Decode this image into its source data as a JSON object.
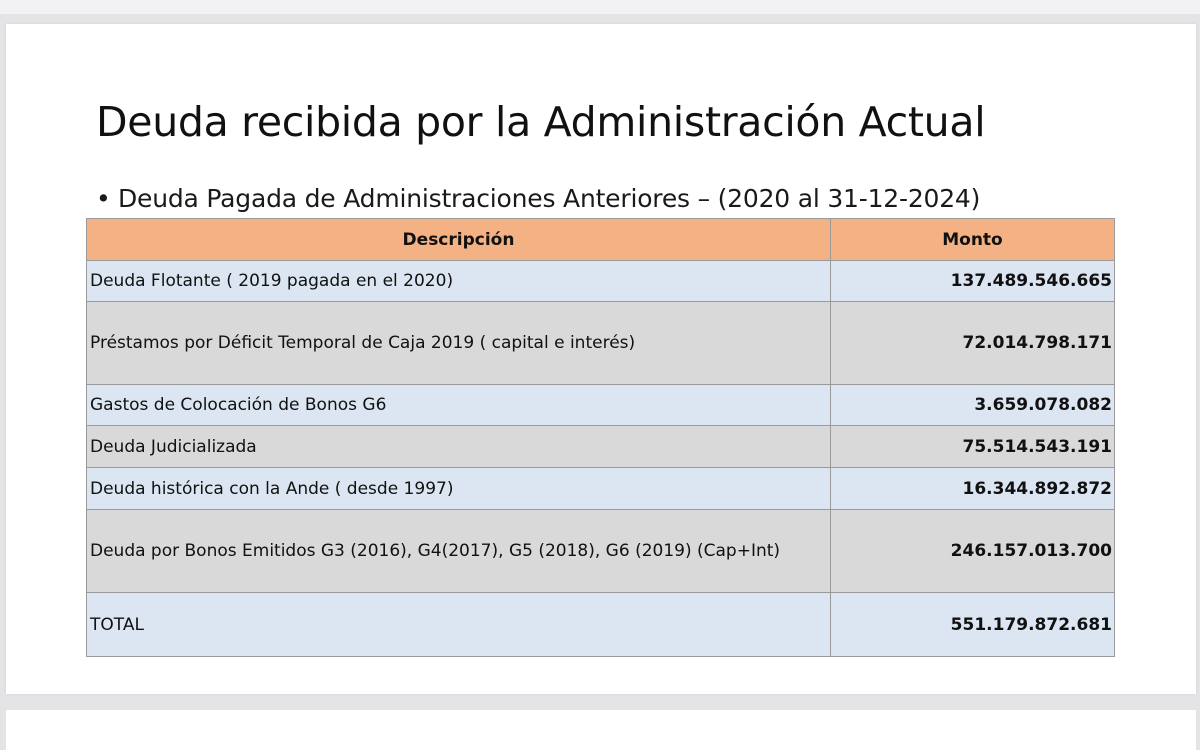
{
  "slide": {
    "title": "Deuda recibida por la Administración Actual",
    "bullet": "•",
    "subtitle": "Deuda Pagada de Administraciones Anteriores – (2020 al 31-12-2024)"
  },
  "table": {
    "headers": {
      "description": "Descripción",
      "amount": "Monto"
    },
    "rows": [
      {
        "description": "Deuda Flotante ( 2019 pagada en el 2020)",
        "amount": "137.489.546.665"
      },
      {
        "description": "Préstamos por Déficit Temporal de Caja 2019 ( capital e interés)",
        "amount": "72.014.798.171"
      },
      {
        "description": "Gastos de Colocación de Bonos G6",
        "amount": "3.659.078.082"
      },
      {
        "description": "Deuda Judicializada",
        "amount": "75.514.543.191"
      },
      {
        "description": "Deuda histórica con la Ande ( desde 1997)",
        "amount": "16.344.892.872"
      },
      {
        "description": "Deuda por Bonos Emitidos G3 (2016), G4(2017),  G5 (2018), G6 (2019) (Cap+Int)",
        "amount": "246.157.013.700"
      },
      {
        "description": "TOTAL",
        "amount": "551.179.872.681"
      }
    ]
  },
  "colors": {
    "header_fill": "#f4b183",
    "row_light": "#dce6f2",
    "row_grey": "#d9d9d9"
  }
}
